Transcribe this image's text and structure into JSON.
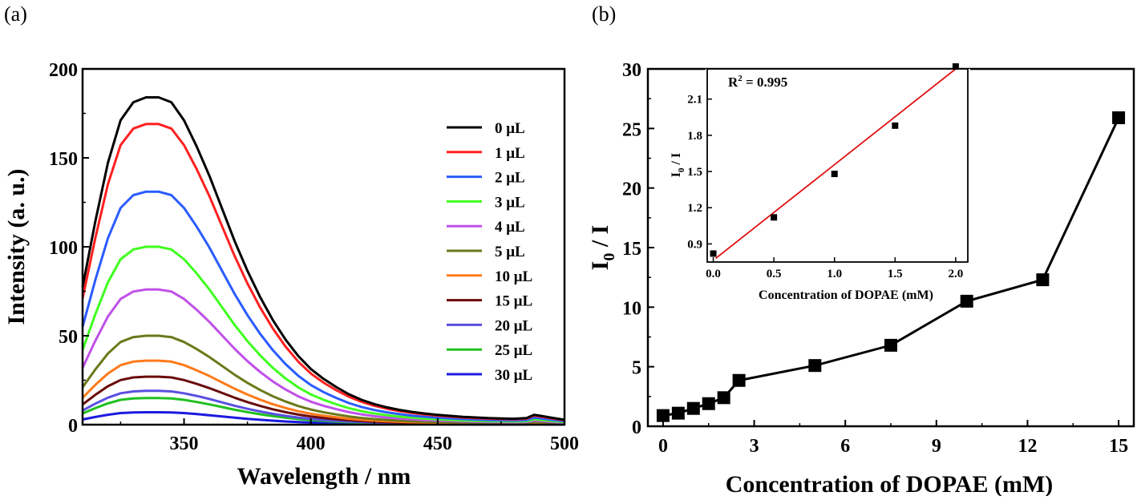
{
  "panels": {
    "a": {
      "label": "(a)",
      "chart_data": {
        "type": "line",
        "xlabel": "Wavelength / nm",
        "ylabel": "Intensity (a. u.)",
        "xlim": [
          310,
          500
        ],
        "ylim": [
          0,
          200
        ],
        "xticks": [
          350,
          400,
          450,
          500
        ],
        "yticks": [
          0,
          50,
          100,
          150,
          200
        ],
        "x": [
          310,
          315,
          320,
          325,
          330,
          335,
          340,
          345,
          350,
          355,
          360,
          365,
          370,
          375,
          380,
          385,
          390,
          395,
          400,
          405,
          410,
          415,
          420,
          425,
          430,
          435,
          440,
          445,
          450,
          455,
          460,
          465,
          470,
          475,
          480,
          485,
          488,
          490,
          495,
          500
        ],
        "shape": [
          0.42,
          0.62,
          0.8,
          0.93,
          0.985,
          1.0,
          1.0,
          0.985,
          0.93,
          0.85,
          0.76,
          0.66,
          0.56,
          0.47,
          0.39,
          0.32,
          0.26,
          0.21,
          0.17,
          0.14,
          0.115,
          0.093,
          0.076,
          0.063,
          0.053,
          0.045,
          0.039,
          0.034,
          0.03,
          0.027,
          0.024,
          0.022,
          0.02,
          0.019,
          0.018,
          0.02,
          0.03,
          0.028,
          0.021,
          0.015
        ],
        "legend_position": "right",
        "series": [
          {
            "name": "0 μL",
            "color": "#000000",
            "peak": 184
          },
          {
            "name": "1 μL",
            "color": "#ff2020",
            "peak": 169
          },
          {
            "name": "2 μL",
            "color": "#2b5cff",
            "peak": 131
          },
          {
            "name": "3 μL",
            "color": "#40ff20",
            "peak": 100
          },
          {
            "name": "4 μL",
            "color": "#c050e8",
            "peak": 76
          },
          {
            "name": "5 μL",
            "color": "#6a7a1a",
            "peak": 50
          },
          {
            "name": "10 μL",
            "color": "#ff7a1a",
            "peak": 36
          },
          {
            "name": "15 μL",
            "color": "#6a0a0a",
            "peak": 27
          },
          {
            "name": "20 μL",
            "color": "#5a50e0",
            "peak": 19
          },
          {
            "name": "25 μL",
            "color": "#20c020",
            "peak": 15
          },
          {
            "name": "30 μL",
            "color": "#1a1ae0",
            "peak": 7
          }
        ]
      }
    },
    "b": {
      "label": "(b)",
      "chart_data": {
        "type": "line",
        "xlabel": "Concentration of  DOPAE (mM)",
        "ylabel_main": "I",
        "ylabel_sub": "0",
        "ylabel_rest": " / I",
        "xlim": [
          -0.5,
          15.5
        ],
        "ylim": [
          0,
          30
        ],
        "xticks": [
          0,
          3,
          6,
          9,
          12,
          15
        ],
        "yticks": [
          0,
          5,
          10,
          15,
          20,
          25,
          30
        ],
        "x": [
          0,
          0.5,
          1,
          1.5,
          2,
          2.5,
          5,
          7.5,
          10,
          12.5,
          15
        ],
        "y": [
          0.9,
          1.1,
          1.5,
          1.9,
          2.4,
          3.85,
          5.1,
          6.8,
          10.5,
          12.3,
          25.9
        ],
        "marker": "square",
        "color": "#000000"
      },
      "inset": {
        "chart_data": {
          "type": "scatter",
          "xlabel": "Concentration of  DOPAE (mM)",
          "ylabel_main": "I",
          "ylabel_sub": "0",
          "ylabel_rest": " / I",
          "xlim": [
            -0.05,
            2.1
          ],
          "ylim": [
            0.75,
            2.35
          ],
          "xticks": [
            0.0,
            0.5,
            1.0,
            1.5,
            2.0
          ],
          "xtick_labels": [
            "0.0",
            "0.5",
            "1.0",
            "1.5",
            "2.0"
          ],
          "yticks": [
            0.9,
            1.2,
            1.5,
            1.8,
            2.1
          ],
          "ytick_labels": [
            "0.9",
            "1.2",
            "1.5",
            "1.8",
            "2.1"
          ],
          "x": [
            0,
            0.5,
            1.0,
            1.5,
            2.0
          ],
          "y": [
            0.82,
            1.12,
            1.48,
            1.88,
            2.37
          ],
          "fit": {
            "x": [
              0.02,
              2.0
            ],
            "y": [
              0.78,
              2.35
            ],
            "color": "#e01010"
          },
          "r2_main": "R",
          "r2_sup": "2",
          "r2_rest": " = 0.995"
        }
      }
    }
  }
}
